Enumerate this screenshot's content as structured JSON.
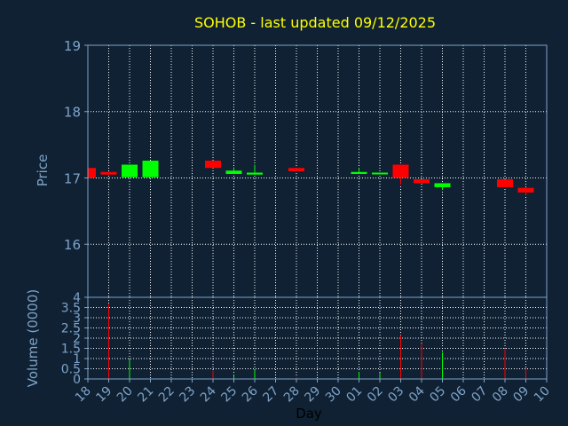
{
  "chart_data": [
    {
      "type": "candlestick",
      "title": "SOHOB - last updated 09/12/2025",
      "ylabel": "Price",
      "ylim": [
        15.2,
        19
      ],
      "yticks": [
        "16",
        "17",
        "18",
        "19"
      ],
      "x": [
        "18",
        "19",
        "20",
        "21",
        "22",
        "23",
        "24",
        "25",
        "26",
        "27",
        "28",
        "29",
        "30",
        "01",
        "02",
        "03",
        "04",
        "05",
        "06",
        "07",
        "08",
        "09",
        "10"
      ],
      "candles": [
        {
          "x": "18",
          "open": 17.15,
          "close": 17.0,
          "high": 17.15,
          "low": 17.0
        },
        {
          "x": "19",
          "open": 17.09,
          "close": 17.05,
          "high": 17.09,
          "low": 17.05
        },
        {
          "x": "20",
          "open": 17.01,
          "close": 17.2,
          "high": 17.2,
          "low": 17.01
        },
        {
          "x": "21",
          "open": 17.01,
          "close": 17.26,
          "high": 17.26,
          "low": 17.01
        },
        {
          "x": "24",
          "open": 17.26,
          "close": 17.15,
          "high": 17.26,
          "low": 17.15
        },
        {
          "x": "25",
          "open": 17.06,
          "close": 17.11,
          "high": 17.16,
          "low": 17.06
        },
        {
          "x": "26",
          "open": 17.05,
          "close": 17.08,
          "high": 17.2,
          "low": 17.05
        },
        {
          "x": "28",
          "open": 17.15,
          "close": 17.1,
          "high": 17.15,
          "low": 17.1
        },
        {
          "x": "01",
          "open": 17.06,
          "close": 17.09,
          "high": 17.15,
          "low": 17.06
        },
        {
          "x": "02",
          "open": 17.06,
          "close": 17.08,
          "high": 17.08,
          "low": 17.06
        },
        {
          "x": "03",
          "open": 17.2,
          "close": 17.0,
          "high": 17.2,
          "low": 16.9
        },
        {
          "x": "04",
          "open": 16.98,
          "close": 16.92,
          "high": 16.98,
          "low": 16.92
        },
        {
          "x": "05",
          "open": 16.86,
          "close": 16.92,
          "high": 16.92,
          "low": 16.82
        },
        {
          "x": "08",
          "open": 16.98,
          "close": 16.86,
          "high": 16.98,
          "low": 16.86
        },
        {
          "x": "09",
          "open": 16.85,
          "close": 16.78,
          "high": 16.85,
          "low": 16.74
        }
      ],
      "colors": {
        "up": "#00ff00",
        "down": "#ff0000",
        "background": "#0f2133",
        "axis": "#7fa3c8",
        "grid": "#ffffff",
        "title": "#ffff00"
      }
    },
    {
      "type": "bar",
      "ylabel": "Volume (0000)",
      "xlabel": "Day",
      "ylim": [
        0,
        4
      ],
      "yticks": [
        "0",
        "0.5",
        "1",
        "1.5",
        "2",
        "2.5",
        "3",
        "3.5",
        "4"
      ],
      "x": [
        "18",
        "19",
        "20",
        "21",
        "22",
        "23",
        "24",
        "25",
        "26",
        "27",
        "28",
        "29",
        "30",
        "01",
        "02",
        "03",
        "04",
        "05",
        "06",
        "07",
        "08",
        "09",
        "10"
      ],
      "bars": [
        {
          "x": "19",
          "value": 3.65,
          "dir": "down"
        },
        {
          "x": "20",
          "value": 0.95,
          "dir": "up"
        },
        {
          "x": "24",
          "value": 0.4,
          "dir": "down"
        },
        {
          "x": "25",
          "value": 0.2,
          "dir": "up"
        },
        {
          "x": "26",
          "value": 0.45,
          "dir": "up"
        },
        {
          "x": "28",
          "value": 0.1,
          "dir": "down"
        },
        {
          "x": "01",
          "value": 0.35,
          "dir": "up"
        },
        {
          "x": "02",
          "value": 0.3,
          "dir": "up"
        },
        {
          "x": "03",
          "value": 2.15,
          "dir": "down"
        },
        {
          "x": "04",
          "value": 1.75,
          "dir": "down"
        },
        {
          "x": "05",
          "value": 1.3,
          "dir": "up"
        },
        {
          "x": "08",
          "value": 1.45,
          "dir": "down"
        },
        {
          "x": "09",
          "value": 0.55,
          "dir": "down"
        }
      ]
    }
  ]
}
